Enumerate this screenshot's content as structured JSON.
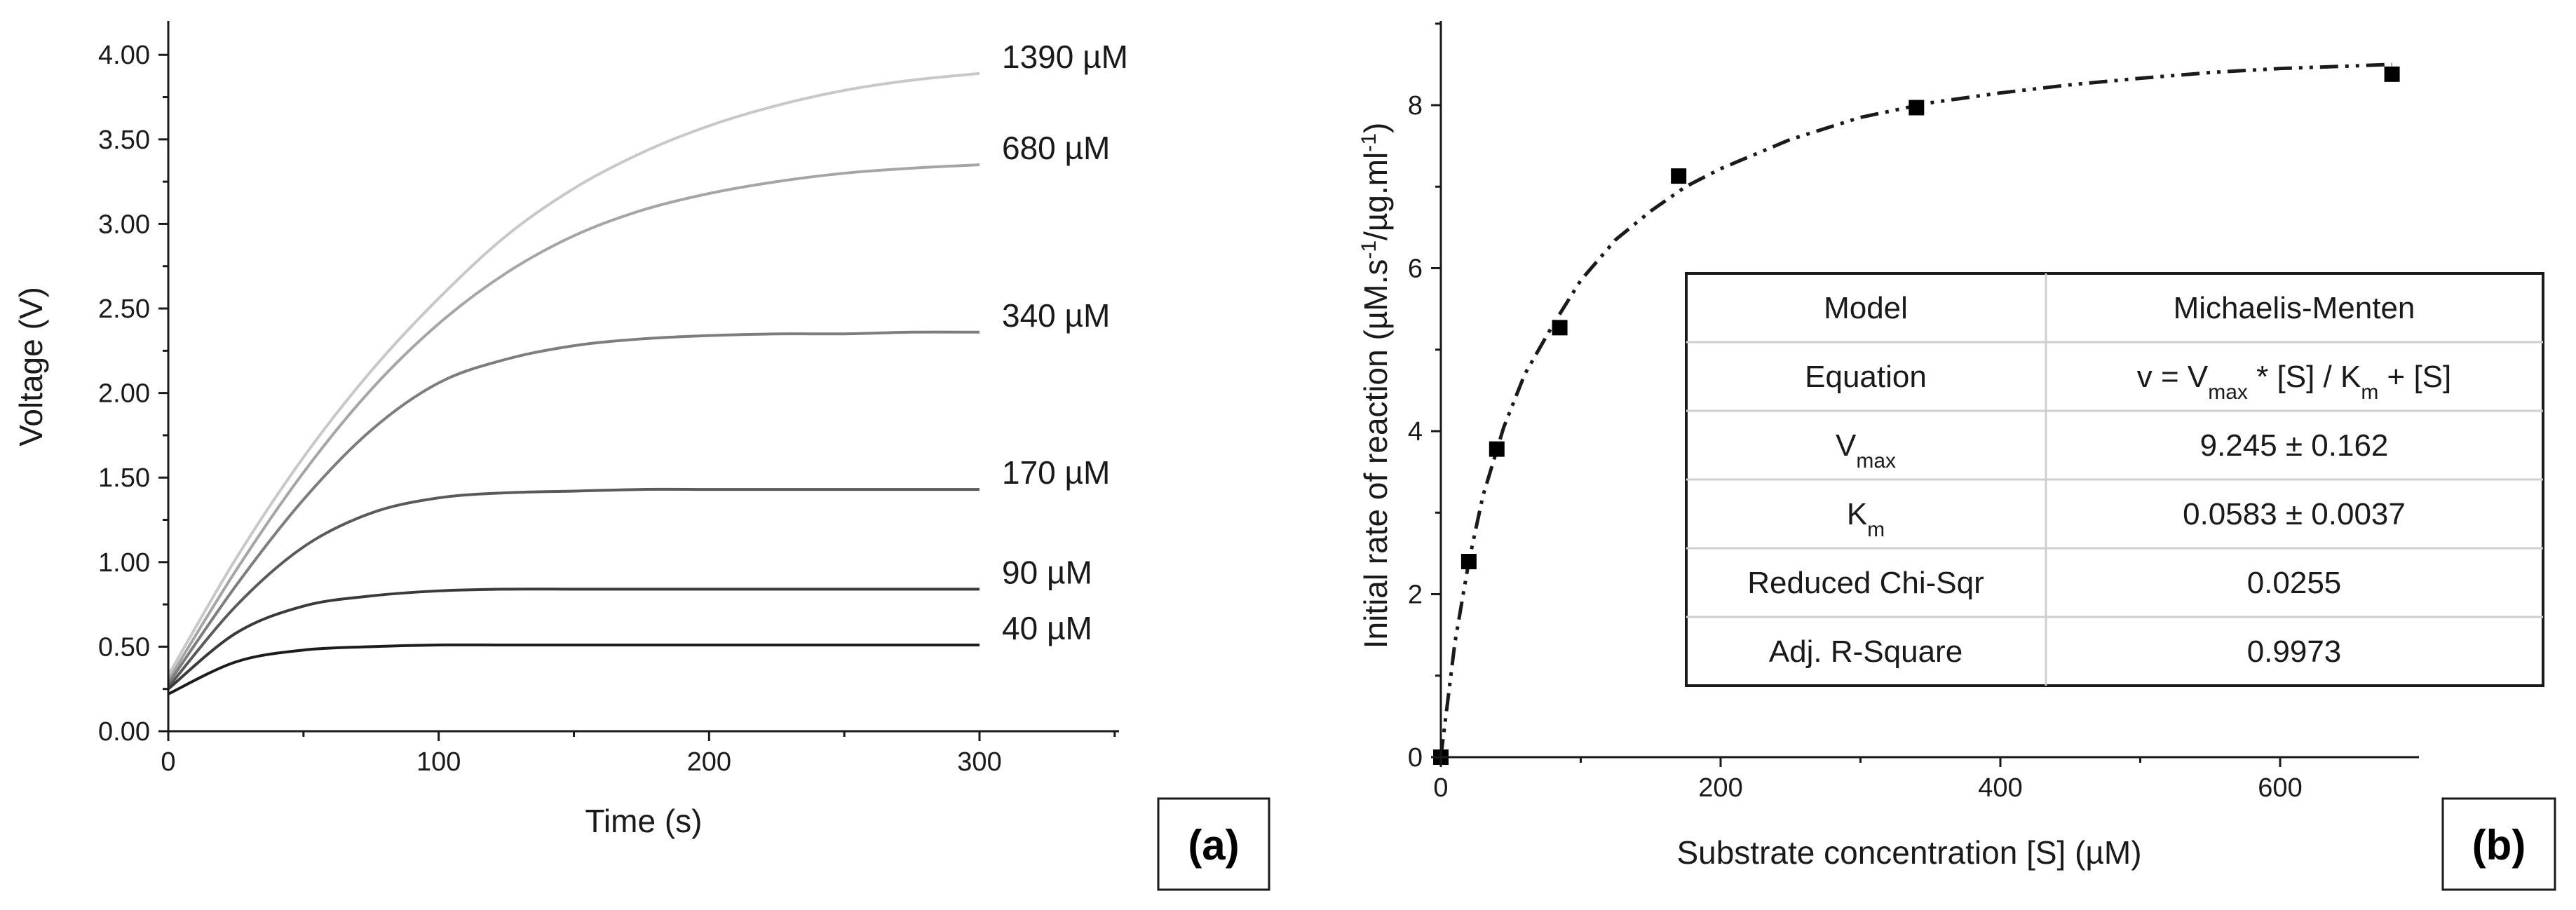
{
  "chart_data": [
    {
      "type": "line",
      "panel_label": "(a)",
      "xlabel": "Time (s)",
      "ylabel": "Voltage (V)",
      "xlim": [
        0,
        350
      ],
      "ylim": [
        0,
        4.2
      ],
      "x_ticks": [
        0,
        100,
        200,
        300
      ],
      "x_tick_labels": [
        "0",
        "100",
        "200",
        "300"
      ],
      "y_ticks": [
        0,
        0.5,
        1,
        1.5,
        2,
        2.5,
        3,
        3.5,
        4
      ],
      "y_tick_labels": [
        "0.00",
        "0.50",
        "1.00",
        "1.50",
        "2.00",
        "2.50",
        "3.00",
        "3.50",
        "4.00"
      ],
      "grid": false,
      "x": [
        0,
        25,
        50,
        75,
        100,
        125,
        150,
        175,
        200,
        225,
        250,
        275,
        300
      ],
      "series": [
        {
          "name": "1390 µM",
          "color": "#c8c8c8",
          "values": [
            0.33,
            1.02,
            1.62,
            2.13,
            2.56,
            2.93,
            3.21,
            3.42,
            3.58,
            3.7,
            3.79,
            3.85,
            3.89
          ]
        },
        {
          "name": "680 µM",
          "color": "#a5a5a5",
          "values": [
            0.3,
            0.95,
            1.53,
            2.02,
            2.41,
            2.71,
            2.93,
            3.08,
            3.18,
            3.25,
            3.3,
            3.33,
            3.35
          ]
        },
        {
          "name": "340 µM",
          "color": "#7d7d7d",
          "values": [
            0.28,
            0.86,
            1.37,
            1.78,
            2.06,
            2.2,
            2.28,
            2.32,
            2.34,
            2.35,
            2.35,
            2.36,
            2.36
          ]
        },
        {
          "name": "170 µM",
          "color": "#5a5a5a",
          "values": [
            0.26,
            0.74,
            1.09,
            1.29,
            1.38,
            1.41,
            1.42,
            1.43,
            1.43,
            1.43,
            1.43,
            1.43,
            1.43
          ]
        },
        {
          "name": "90 µM",
          "color": "#3a3a3a",
          "values": [
            0.25,
            0.58,
            0.74,
            0.8,
            0.83,
            0.84,
            0.84,
            0.84,
            0.84,
            0.84,
            0.84,
            0.84,
            0.84
          ]
        },
        {
          "name": "40 µM",
          "color": "#1c1c1c",
          "values": [
            0.22,
            0.41,
            0.48,
            0.5,
            0.51,
            0.51,
            0.51,
            0.51,
            0.51,
            0.51,
            0.51,
            0.51,
            0.51
          ]
        }
      ]
    },
    {
      "type": "scatter",
      "panel_label": "(b)",
      "xlabel": "Substrate concentration [S] (µM)",
      "ylabel_parts": [
        "Initial rate of reaction (µM.s",
        "-1",
        "/µg.ml",
        "-1",
        ")"
      ],
      "xlim": [
        0,
        700
      ],
      "ylim": [
        0,
        9
      ],
      "x_ticks": [
        0,
        200,
        400,
        600
      ],
      "x_tick_labels": [
        "0",
        "200",
        "400",
        "600"
      ],
      "y_ticks": [
        0,
        2,
        4,
        6,
        8
      ],
      "y_tick_labels": [
        "0",
        "2",
        "4",
        "6",
        "8"
      ],
      "grid": false,
      "points": [
        {
          "x": 0,
          "y": 0.0
        },
        {
          "x": 20,
          "y": 2.4
        },
        {
          "x": 40,
          "y": 3.78
        },
        {
          "x": 85,
          "y": 5.27
        },
        {
          "x": 170,
          "y": 7.13
        },
        {
          "x": 340,
          "y": 7.97
        },
        {
          "x": 680,
          "y": 8.38
        }
      ],
      "fit": {
        "model": "Michaelis-Menten",
        "style": "dash-dot",
        "x": [
          0,
          10,
          20,
          30,
          45,
          60,
          80,
          100,
          125,
          150,
          175,
          200,
          250,
          300,
          350,
          400,
          450,
          500,
          550,
          600,
          650,
          680
        ],
        "y": [
          0.0,
          1.4,
          2.4,
          3.2,
          4.05,
          4.7,
          5.3,
          5.85,
          6.35,
          6.7,
          7.0,
          7.22,
          7.58,
          7.85,
          8.03,
          8.15,
          8.25,
          8.33,
          8.4,
          8.45,
          8.48,
          8.5
        ]
      },
      "table": {
        "rows": [
          {
            "label": "Model",
            "value": "Michaelis-Menten"
          },
          {
            "label": "Equation",
            "value_parts": [
              "v = V",
              "max",
              " * [S] / K",
              "m",
              " + [S]"
            ]
          },
          {
            "label_parts": [
              "V",
              "max"
            ],
            "value": "9.245 ± 0.162"
          },
          {
            "label_parts": [
              "K",
              "m"
            ],
            "value": "0.0583 ± 0.0037"
          },
          {
            "label": "Reduced Chi-Sqr",
            "value": "0.0255"
          },
          {
            "label": "Adj. R-Square",
            "value": "0.9973"
          }
        ]
      }
    }
  ]
}
